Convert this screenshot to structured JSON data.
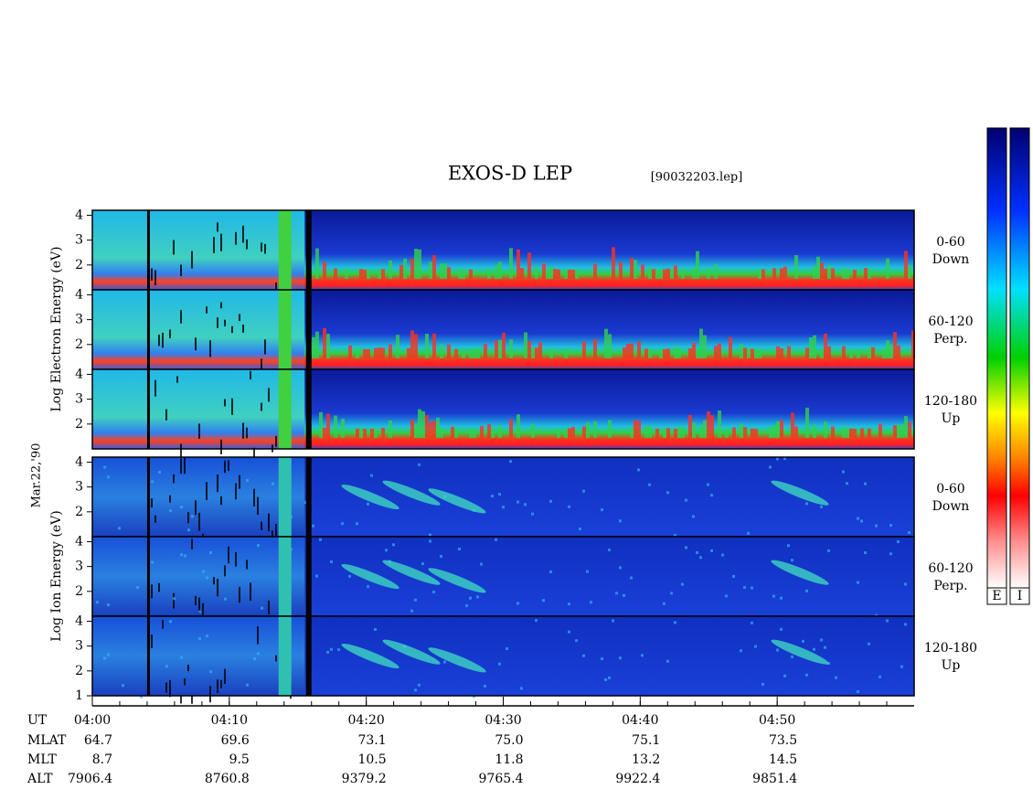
{
  "title": "EXOS-D LEP",
  "file": "[90032203.lep]",
  "electron_axis_label": "Log  Electron  Energy (eV)",
  "date": "Mar.22,'90",
  "ion_axis_label": "Log  Ion  Energy (eV)",
  "ylim": [
    1,
    4.2
  ],
  "panels": [
    {
      "species": "electron",
      "angle": "0-60",
      "direction": "Down",
      "yticks": [
        2,
        3,
        4
      ]
    },
    {
      "species": "electron",
      "angle": "60-120",
      "direction": "Perp.",
      "yticks": [
        2,
        3,
        4
      ]
    },
    {
      "species": "electron",
      "angle": "120-180",
      "direction": "Up",
      "yticks": [
        2,
        3,
        4
      ]
    },
    {
      "species": "ion",
      "angle": "0-60",
      "direction": "Down",
      "yticks": [
        2,
        3,
        4
      ]
    },
    {
      "species": "ion",
      "angle": "60-120",
      "direction": "Perp.",
      "yticks": [
        2,
        3,
        4
      ]
    },
    {
      "species": "ion",
      "angle": "120-180",
      "direction": "Up",
      "yticks": [
        1,
        2,
        3,
        4
      ]
    }
  ],
  "time_axis": {
    "label": "UT",
    "xlim": [
      0,
      60
    ],
    "xticks": [
      {
        "value": 0,
        "label": "04:00"
      },
      {
        "value": 10,
        "label": "04:10"
      },
      {
        "value": 20,
        "label": "04:20"
      },
      {
        "value": 30,
        "label": "04:30"
      },
      {
        "value": 40,
        "label": "04:40"
      },
      {
        "value": 50,
        "label": "04:50"
      }
    ]
  },
  "ephemeris": [
    {
      "label": "MLAT",
      "values": [
        "64.7",
        "69.6",
        "73.1",
        "75.0",
        "75.1",
        "73.5"
      ]
    },
    {
      "label": "MLT",
      "values": [
        "8.7",
        "9.5",
        "10.5",
        "11.8",
        "13.2",
        "14.5"
      ]
    },
    {
      "label": "ALT",
      "values": [
        "7906.4",
        "8760.8",
        "9379.2",
        "9765.4",
        "9922.4",
        "9851.4"
      ]
    }
  ],
  "colorbar": {
    "labels": [
      "E",
      "I"
    ]
  }
}
